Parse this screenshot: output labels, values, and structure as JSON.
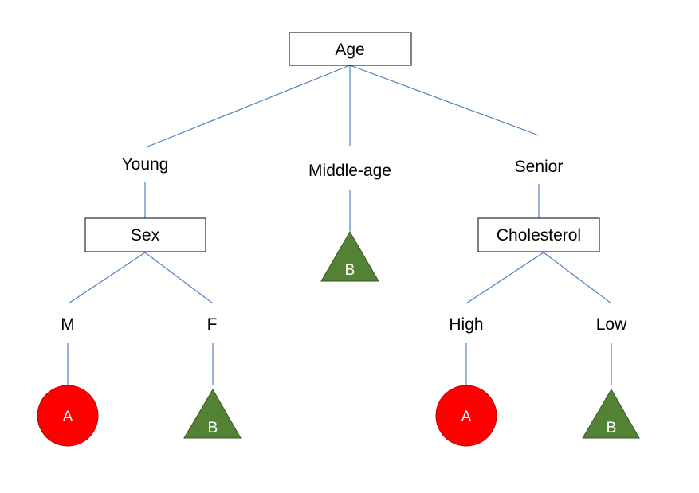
{
  "colors": {
    "edge": "#4f81bd",
    "class_a_fill": "#ff0000",
    "class_a_stroke": "#c00000",
    "class_b_fill": "#548235",
    "class_b_stroke": "#385723"
  },
  "tree": {
    "root": {
      "label": "Age"
    },
    "branches": {
      "young": {
        "label": "Young"
      },
      "middle": {
        "label": "Middle-age"
      },
      "senior": {
        "label": "Senior"
      }
    },
    "sex_node": {
      "label": "Sex"
    },
    "cholesterol_node": {
      "label": "Cholesterol"
    },
    "sex_branches": {
      "m": {
        "label": "M"
      },
      "f": {
        "label": "F"
      }
    },
    "cholesterol_branches": {
      "high": {
        "label": "High"
      },
      "low": {
        "label": "Low"
      }
    },
    "leaves": {
      "middle": {
        "label": "B",
        "shape": "triangle-icon"
      },
      "m": {
        "label": "A",
        "shape": "circle-icon"
      },
      "f": {
        "label": "B",
        "shape": "triangle-icon"
      },
      "high": {
        "label": "A",
        "shape": "circle-icon"
      },
      "low": {
        "label": "B",
        "shape": "triangle-icon"
      }
    }
  }
}
